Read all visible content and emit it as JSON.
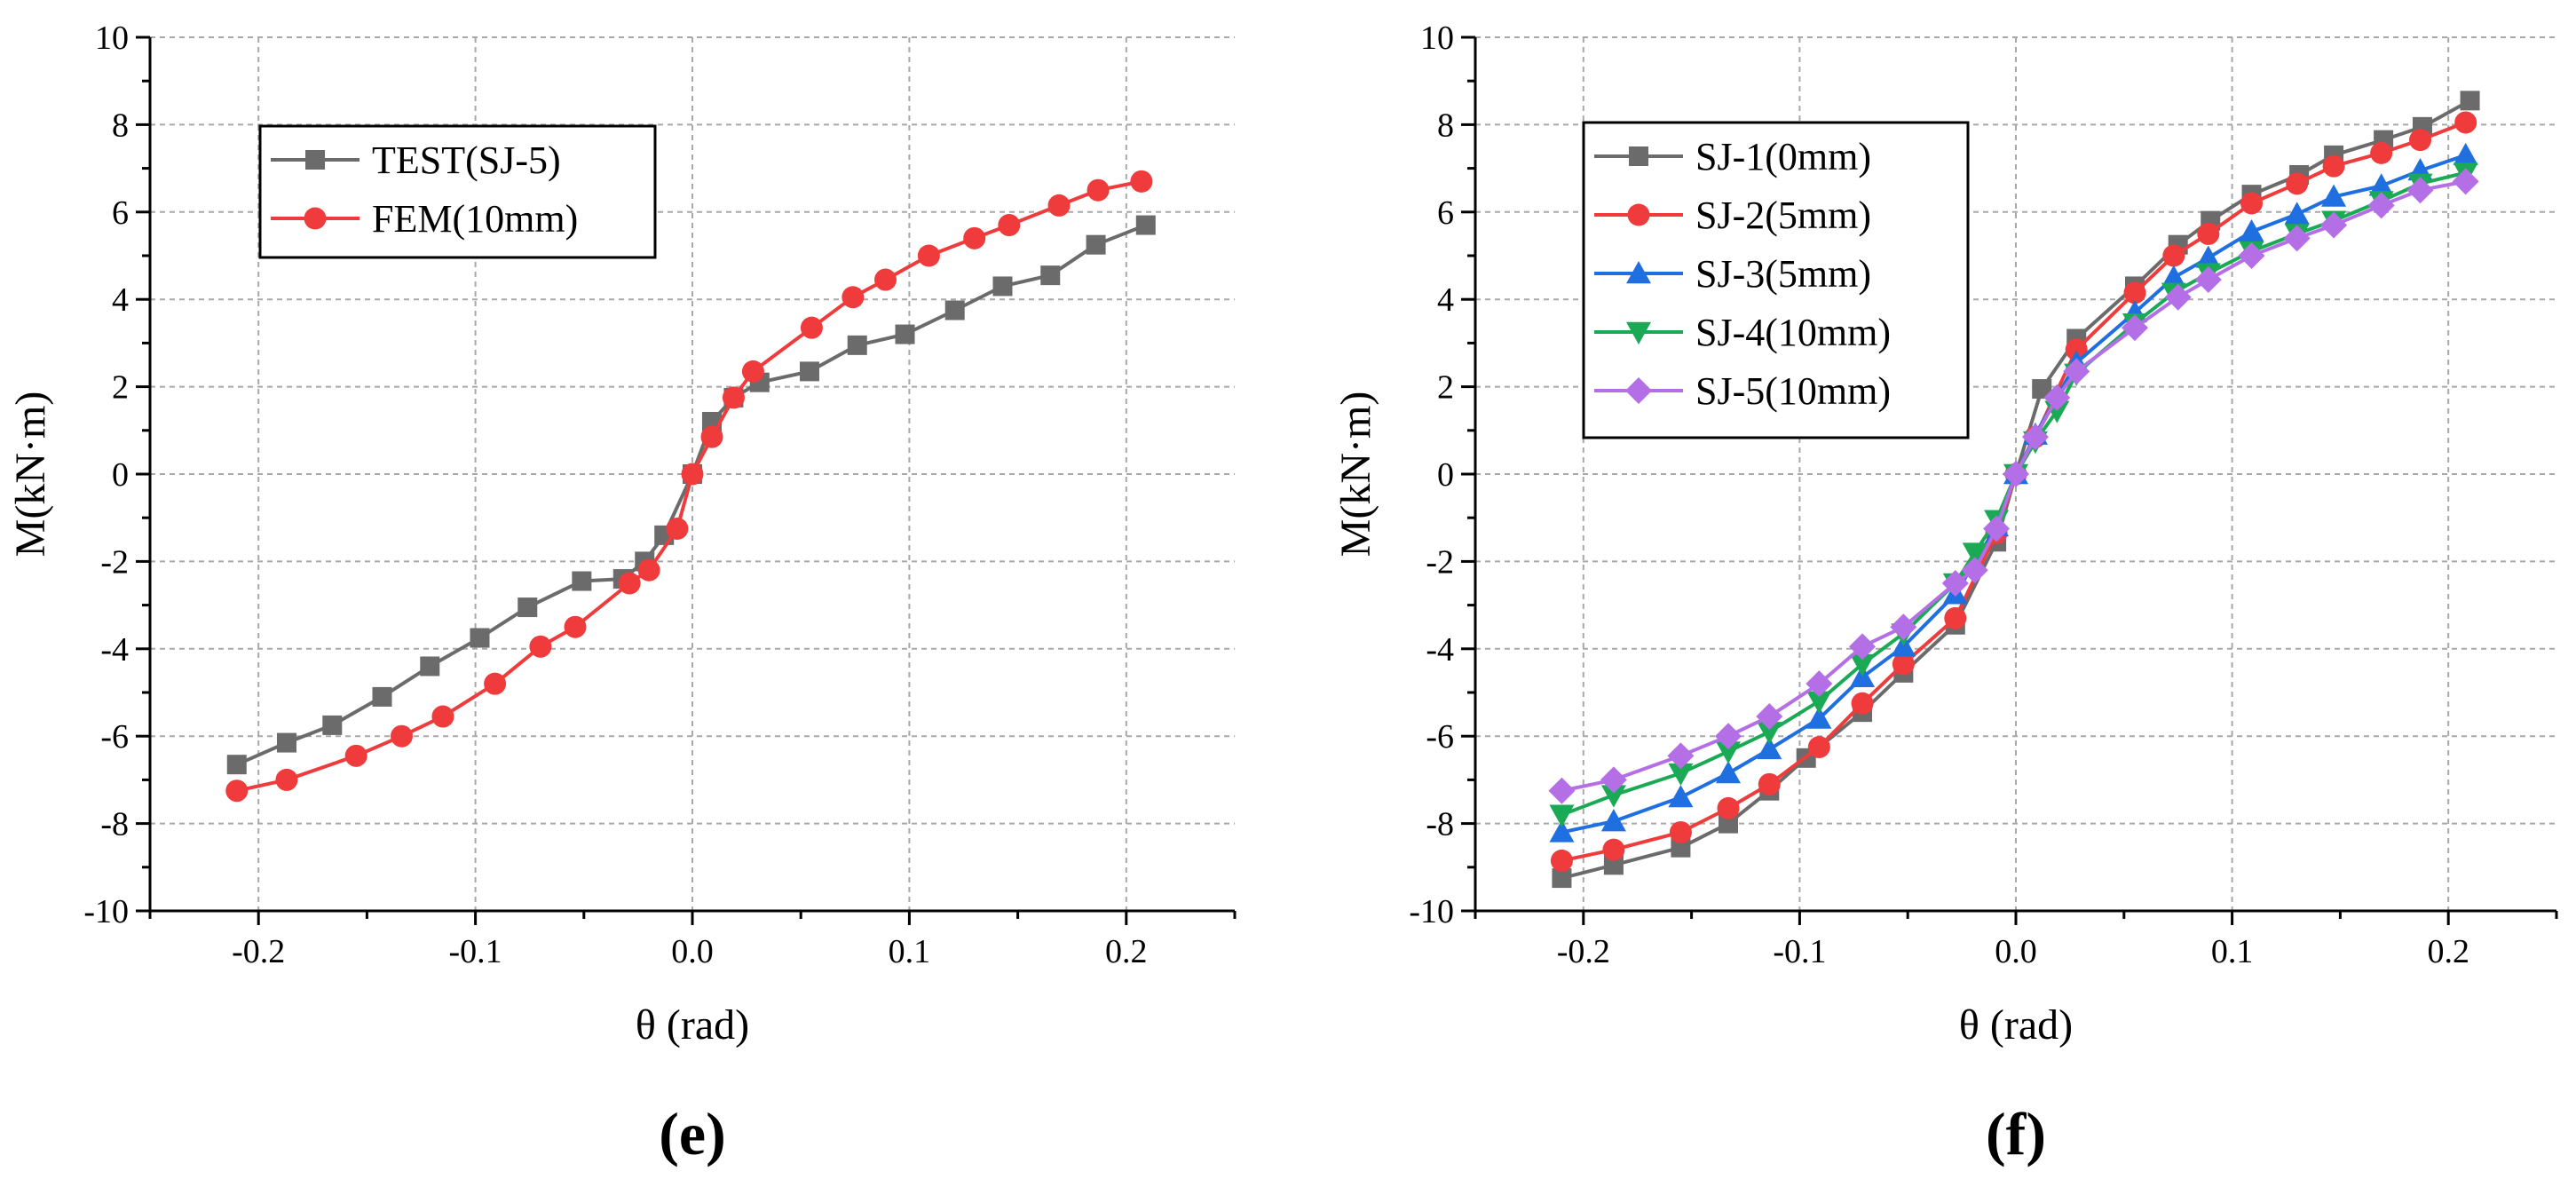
{
  "panels": [
    {
      "panel_label": "(e)",
      "legend": [
        {
          "label": "TEST(SJ-5)"
        },
        {
          "label": "FEM(10mm)"
        }
      ]
    },
    {
      "panel_label": "(f)",
      "legend": [
        {
          "label": "SJ-1(0mm)"
        },
        {
          "label": "SJ-2(5mm)"
        },
        {
          "label": "SJ-3(5mm)"
        },
        {
          "label": "SJ-4(10mm)"
        },
        {
          "label": "SJ-5(10mm)"
        }
      ]
    }
  ],
  "chart_data": [
    {
      "type": "line",
      "panel": "(e)",
      "xlabel": "θ (rad)",
      "ylabel": "M(kN·m)",
      "xlim": [
        -0.25,
        0.25
      ],
      "ylim": [
        -10,
        10
      ],
      "xticks": [
        -0.2,
        -0.1,
        0.0,
        0.1,
        0.2
      ],
      "xtick_labels": [
        "-0.2",
        "-0.1",
        "0.0",
        "0.1",
        "0.2"
      ],
      "yticks": [
        -10,
        -8,
        -6,
        -4,
        -2,
        0,
        2,
        4,
        6,
        8,
        10
      ],
      "ytick_labels": [
        "-10",
        "-8",
        "-6",
        "-4",
        "-2",
        "0",
        "2",
        "4",
        "6",
        "8",
        "10"
      ],
      "grid": true,
      "legend_position": "top-left",
      "series": [
        {
          "name": "TEST(SJ-5)",
          "color": "#6b6b6b",
          "marker": "square",
          "x": [
            -0.21,
            -0.187,
            -0.166,
            -0.143,
            -0.121,
            -0.098,
            -0.076,
            -0.051,
            -0.032,
            -0.022,
            -0.013,
            0.0,
            0.009,
            0.019,
            0.031,
            0.054,
            0.076,
            0.098,
            0.121,
            0.143,
            0.165,
            0.186,
            0.209
          ],
          "y": [
            -6.65,
            -6.15,
            -5.75,
            -5.1,
            -4.4,
            -3.75,
            -3.05,
            -2.45,
            -2.4,
            -2.0,
            -1.4,
            0.0,
            1.2,
            1.75,
            2.1,
            2.35,
            2.95,
            3.2,
            3.75,
            4.3,
            4.55,
            5.25,
            5.7
          ]
        },
        {
          "name": "FEM(10mm)",
          "color": "#ef3b3b",
          "marker": "circle",
          "x": [
            -0.21,
            -0.187,
            -0.155,
            -0.134,
            -0.115,
            -0.091,
            -0.07,
            -0.054,
            -0.029,
            -0.02,
            -0.007,
            0.0,
            0.009,
            0.019,
            0.028,
            0.055,
            0.074,
            0.089,
            0.109,
            0.13,
            0.146,
            0.169,
            0.187,
            0.207
          ],
          "y": [
            -7.25,
            -7.0,
            -6.45,
            -6.0,
            -5.55,
            -4.8,
            -3.95,
            -3.5,
            -2.5,
            -2.2,
            -1.25,
            0.0,
            0.85,
            1.75,
            2.35,
            3.35,
            4.05,
            4.45,
            5.0,
            5.4,
            5.7,
            6.15,
            6.5,
            6.7
          ]
        }
      ]
    },
    {
      "type": "line",
      "panel": "(f)",
      "xlabel": "θ (rad)",
      "ylabel": "M(kN·m)",
      "xlim": [
        -0.25,
        0.25
      ],
      "ylim": [
        -10,
        10
      ],
      "xticks": [
        -0.2,
        -0.1,
        0.0,
        0.1,
        0.2
      ],
      "xtick_labels": [
        "-0.2",
        "-0.1",
        "0.0",
        "0.1",
        "0.2"
      ],
      "yticks": [
        -10,
        -8,
        -6,
        -4,
        -2,
        0,
        2,
        4,
        6,
        8,
        10
      ],
      "ytick_labels": [
        "-10",
        "-8",
        "-6",
        "-4",
        "-2",
        "0",
        "2",
        "4",
        "6",
        "8",
        "10"
      ],
      "grid": true,
      "legend_position": "top-left",
      "series": [
        {
          "name": "SJ-1(0mm)",
          "color": "#6b6b6b",
          "marker": "square",
          "x": [
            -0.21,
            -0.186,
            -0.155,
            -0.133,
            -0.114,
            -0.097,
            -0.071,
            -0.052,
            -0.028,
            -0.009,
            0.0,
            0.012,
            0.028,
            0.055,
            0.075,
            0.09,
            0.109,
            0.131,
            0.147,
            0.17,
            0.188,
            0.21
          ],
          "y": [
            -9.25,
            -8.95,
            -8.55,
            -8.0,
            -7.25,
            -6.5,
            -5.45,
            -4.55,
            -3.45,
            -1.55,
            0.0,
            1.95,
            3.1,
            4.3,
            5.25,
            5.8,
            6.4,
            6.85,
            7.3,
            7.65,
            7.95,
            8.55
          ]
        },
        {
          "name": "SJ-2(5mm)",
          "color": "#ef3b3b",
          "marker": "circle",
          "x": [
            -0.21,
            -0.186,
            -0.155,
            -0.133,
            -0.114,
            -0.091,
            -0.071,
            -0.052,
            -0.028,
            -0.009,
            0.0,
            0.009,
            0.028,
            0.055,
            0.073,
            0.089,
            0.109,
            0.13,
            0.147,
            0.169,
            0.187,
            0.208
          ],
          "y": [
            -8.85,
            -8.6,
            -8.2,
            -7.65,
            -7.1,
            -6.25,
            -5.25,
            -4.35,
            -3.3,
            -1.35,
            0.0,
            0.85,
            2.85,
            4.15,
            5.0,
            5.5,
            6.2,
            6.65,
            7.05,
            7.35,
            7.65,
            8.05
          ]
        },
        {
          "name": "SJ-3(5mm)",
          "color": "#1f6fe0",
          "marker": "triangle-up",
          "x": [
            -0.21,
            -0.186,
            -0.155,
            -0.133,
            -0.114,
            -0.091,
            -0.071,
            -0.052,
            -0.028,
            -0.009,
            0.0,
            0.009,
            0.028,
            0.055,
            0.073,
            0.089,
            0.109,
            0.13,
            0.147,
            0.169,
            0.187,
            0.208
          ],
          "y": [
            -8.2,
            -7.95,
            -7.4,
            -6.85,
            -6.3,
            -5.6,
            -4.65,
            -3.95,
            -2.75,
            -1.2,
            0.0,
            0.9,
            2.55,
            3.7,
            4.5,
            4.95,
            5.55,
            5.95,
            6.35,
            6.6,
            6.95,
            7.3
          ]
        },
        {
          "name": "SJ-4(10mm)",
          "color": "#1aaa55",
          "marker": "triangle-down",
          "x": [
            -0.21,
            -0.186,
            -0.155,
            -0.133,
            -0.114,
            -0.091,
            -0.071,
            -0.052,
            -0.028,
            -0.019,
            -0.009,
            0.0,
            0.009,
            0.019,
            0.028,
            0.055,
            0.073,
            0.089,
            0.109,
            0.13,
            0.147,
            0.169,
            0.187,
            0.208
          ],
          "y": [
            -7.8,
            -7.35,
            -6.85,
            -6.35,
            -5.9,
            -5.2,
            -4.35,
            -3.65,
            -2.5,
            -1.8,
            -1.05,
            0.0,
            0.75,
            1.45,
            2.3,
            3.45,
            4.15,
            4.6,
            5.1,
            5.5,
            5.8,
            6.25,
            6.65,
            6.9
          ]
        },
        {
          "name": "SJ-5(10mm)",
          "color": "#b46fe6",
          "marker": "diamond",
          "x": [
            -0.21,
            -0.186,
            -0.155,
            -0.133,
            -0.114,
            -0.091,
            -0.071,
            -0.052,
            -0.028,
            -0.019,
            -0.009,
            0.0,
            0.009,
            0.019,
            0.028,
            0.055,
            0.075,
            0.089,
            0.109,
            0.13,
            0.147,
            0.169,
            0.187,
            0.208
          ],
          "y": [
            -7.25,
            -7.0,
            -6.45,
            -6.0,
            -5.55,
            -4.8,
            -3.95,
            -3.5,
            -2.5,
            -2.2,
            -1.25,
            0.0,
            0.85,
            1.75,
            2.35,
            3.35,
            4.05,
            4.45,
            5.0,
            5.4,
            5.7,
            6.15,
            6.5,
            6.7
          ]
        }
      ]
    }
  ]
}
